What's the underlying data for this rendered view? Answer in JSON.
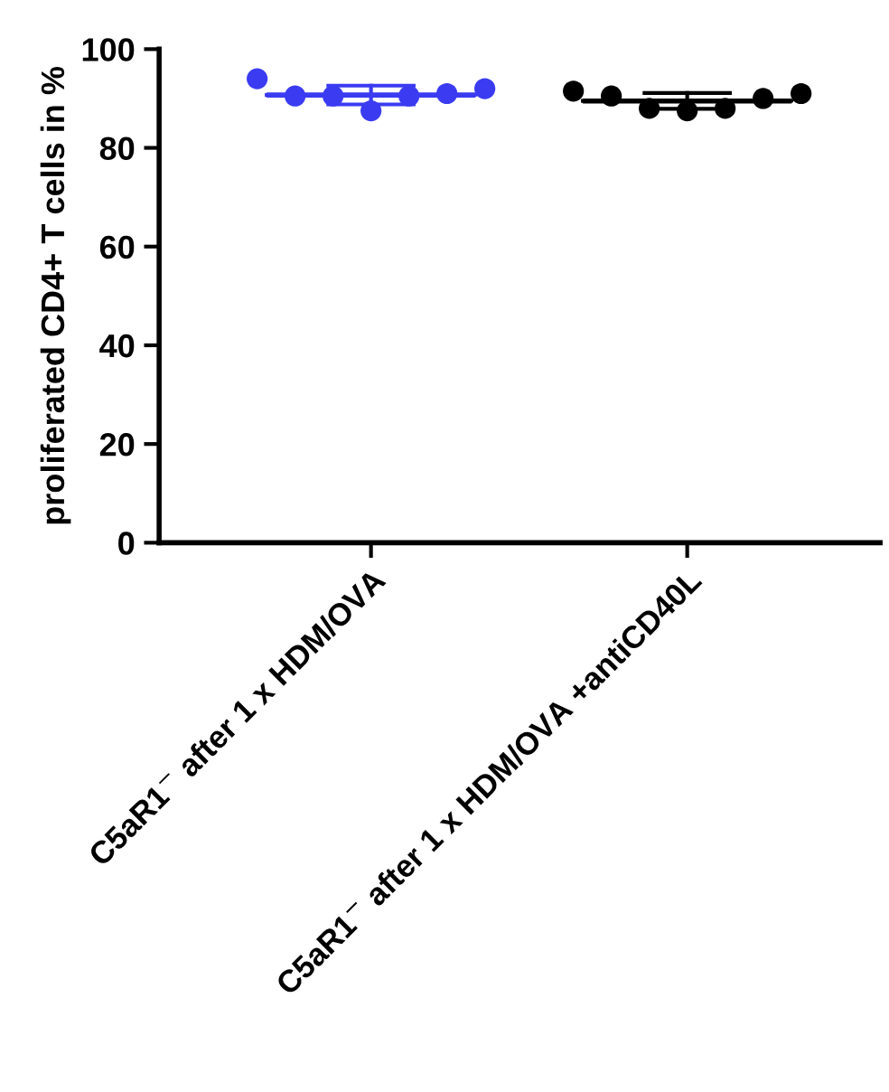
{
  "chart_data": {
    "type": "scatter",
    "ylabel": "proliferated CD4+ T cells in %",
    "categories": [
      "C5aR1$^{−}$ after 1 x HDM/OVA",
      "C5aR1$^{−}$ after 1 x HDM/OVA +antiCD40L"
    ],
    "ylim": [
      0,
      100
    ],
    "yticks": [
      0,
      20,
      40,
      60,
      80,
      100
    ],
    "grid": false,
    "legend": false,
    "series": [
      {
        "marker": "circle",
        "color": "#3b3bf2",
        "x": [
          "C5aR1$^{−}$ after 1 x HDM/OVA",
          "C5aR1$^{−}$ after 1 x HDM/OVA",
          "C5aR1$^{−}$ after 1 x HDM/OVA",
          "C5aR1$^{−}$ after 1 x HDM/OVA",
          "C5aR1$^{−}$ after 1 x HDM/OVA",
          "C5aR1$^{−}$ after 1 x HDM/OVA",
          "C5aR1$^{−}$ after 1 x HDM/OVA"
        ],
        "values": [
          94,
          90.5,
          90.5,
          87.5,
          90.5,
          91,
          92
        ]
      },
      {
        "marker": "circle",
        "color": "#000000",
        "x": [
          "C5aR1$^{−}$ after 1 x HDM/OVA +antiCD40L",
          "C5aR1$^{−}$ after 1 x HDM/OVA +antiCD40L",
          "C5aR1$^{−}$ after 1 x HDM/OVA +antiCD40L",
          "C5aR1$^{−}$ after 1 x HDM/OVA +antiCD40L",
          "C5aR1$^{−}$ after 1 x HDM/OVA +antiCD40L",
          "C5aR1$^{−}$ after 1 x HDM/OVA +antiCD40L",
          "C5aR1$^{−}$ after 1 x HDM/OVA +antiCD40L"
        ],
        "values": [
          91.5,
          90.5,
          88,
          87.5,
          88,
          90,
          91
        ]
      },
      {
        "type": "box",
        "colors": [
          "#3b3bf2",
          "#000000"
        ],
        "boxes": [
          {
            "low": 88.8,
            "q1": 90.7,
            "median": 90.7,
            "q3": 90.7,
            "high": 92.6
          },
          {
            "low": 87.9,
            "q1": 89.5,
            "median": 89.5,
            "q3": 89.5,
            "high": 91.1
          }
        ]
      }
    ]
  }
}
